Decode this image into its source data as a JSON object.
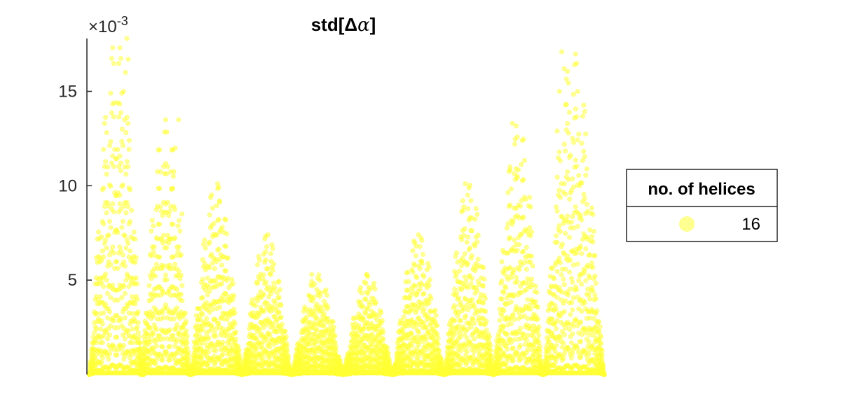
{
  "chart_data": {
    "type": "scatter",
    "title": "std[Δα]",
    "title_prefix": "std[Δ",
    "title_symbol": "α",
    "title_suffix": "]",
    "axis_multiplier_base": "×10",
    "axis_multiplier_exponent": "-3",
    "y_scale": 0.001,
    "xlabel": "",
    "ylabel": "",
    "xlim": [
      0,
      11
    ],
    "ylim": [
      0,
      17.8
    ],
    "yticks": [
      5,
      10,
      15
    ],
    "ytick_labels": [
      "5",
      "10",
      "15"
    ],
    "xticks_visible": false,
    "grid": false,
    "legend": {
      "title": "no. of helices",
      "entries": [
        "16"
      ],
      "placement": "right"
    },
    "series": [
      {
        "name": "16",
        "color": "#ffff33",
        "opacity": 0.55,
        "groups": [
          {
            "start": 0.05,
            "end": 1.2,
            "peak": 17.8,
            "phase": 0.0
          },
          {
            "start": 1.15,
            "end": 2.2,
            "peak": 13.5,
            "phase": 0.5
          },
          {
            "start": 2.2,
            "end": 3.3,
            "peak": 10.1,
            "phase": 0.2
          },
          {
            "start": 3.3,
            "end": 4.35,
            "peak": 7.4,
            "phase": 0.7
          },
          {
            "start": 4.35,
            "end": 5.45,
            "peak": 5.3,
            "phase": 0.3
          },
          {
            "start": 5.45,
            "end": 6.5,
            "peak": 5.3,
            "phase": 0.6
          },
          {
            "start": 6.5,
            "end": 7.6,
            "peak": 7.4,
            "phase": 0.1
          },
          {
            "start": 7.6,
            "end": 8.65,
            "peak": 10.1,
            "phase": 0.4
          },
          {
            "start": 8.65,
            "end": 9.7,
            "peak": 13.3,
            "phase": 0.8
          },
          {
            "start": 9.7,
            "end": 11.0,
            "peak": 17.1,
            "phase": 0.25
          }
        ],
        "x": [
          0.85,
          0.88,
          0.82,
          0.78,
          0.75,
          0.8,
          0.9,
          0.72,
          0.95,
          0.7,
          1.95,
          1.88,
          1.84,
          1.8,
          2.02,
          1.75,
          2.78,
          2.82,
          2.7,
          2.88,
          3.85,
          3.8,
          3.92,
          4.78,
          4.84,
          4.72,
          5.95,
          5.9,
          6.02,
          7.05,
          7.0,
          7.12,
          8.05,
          8.1,
          8.0,
          8.18,
          9.05,
          9.1,
          9.0,
          9.15,
          10.1,
          10.15,
          10.05,
          10.2,
          10.0
        ],
        "y": [
          17.8,
          16.7,
          16.0,
          15.0,
          13.0,
          13.5,
          12.4,
          10.8,
          8.7,
          9.5,
          13.5,
          12.0,
          10.5,
          9.8,
          8.5,
          7.2,
          10.1,
          9.2,
          8.0,
          7.8,
          7.4,
          6.5,
          6.0,
          5.3,
          4.8,
          4.2,
          5.3,
          4.9,
          4.5,
          7.4,
          6.8,
          6.0,
          10.1,
          9.5,
          8.7,
          8.3,
          13.3,
          12.2,
          11.0,
          10.5,
          17.1,
          16.2,
          15.0,
          14.3,
          12.9
        ]
      }
    ]
  }
}
